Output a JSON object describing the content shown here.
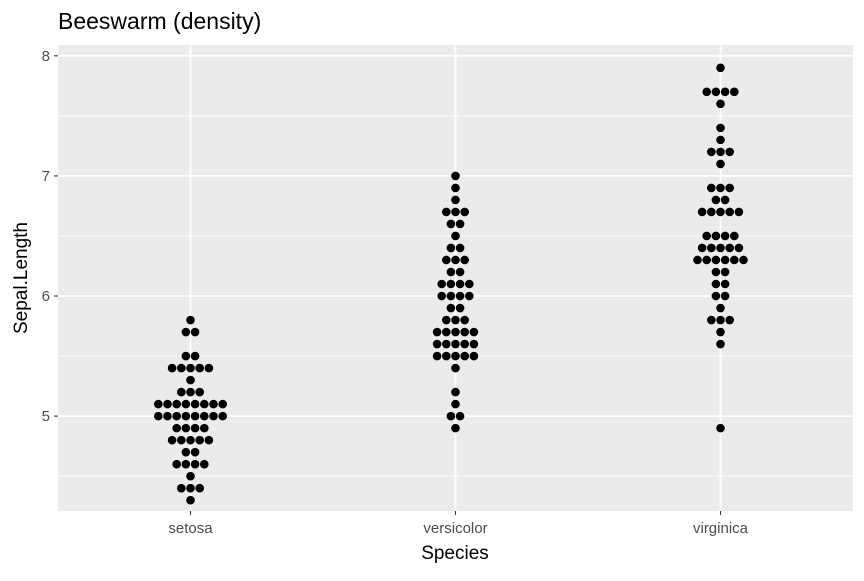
{
  "chart_data": {
    "type": "scatter",
    "subtype": "beeswarm",
    "title": "Beeswarm (density)",
    "xlabel": "Species",
    "ylabel": "Sepal.Length",
    "categories": [
      "setosa",
      "versicolor",
      "virginica"
    ],
    "y_ticks": [
      5,
      6,
      7,
      8
    ],
    "ylim": [
      4.21,
      8.09
    ],
    "grid": true,
    "legend": "none",
    "colors": {
      "panel": "#ebebeb",
      "grid": "#ffffff",
      "point": "#000000",
      "tick_label": "#4d4d4d",
      "tick": "#333333"
    },
    "series": [
      {
        "category": "setosa",
        "values": [
          5.1,
          4.9,
          4.7,
          4.6,
          5.0,
          5.4,
          4.6,
          5.0,
          4.4,
          4.9,
          5.4,
          4.8,
          4.8,
          4.3,
          5.8,
          5.7,
          5.4,
          5.1,
          5.7,
          5.1,
          5.4,
          5.1,
          4.6,
          5.1,
          4.8,
          5.0,
          5.0,
          5.2,
          5.2,
          4.7,
          4.8,
          5.4,
          5.2,
          5.5,
          4.9,
          5.0,
          5.5,
          4.9,
          4.4,
          5.1,
          5.0,
          4.5,
          4.4,
          5.0,
          5.1,
          4.8,
          5.1,
          4.6,
          5.3,
          5.0
        ]
      },
      {
        "category": "versicolor",
        "values": [
          7.0,
          6.4,
          6.9,
          5.5,
          6.5,
          5.7,
          6.3,
          4.9,
          6.6,
          5.2,
          5.0,
          5.9,
          6.0,
          6.1,
          5.6,
          6.7,
          5.6,
          5.8,
          6.2,
          5.6,
          5.9,
          6.1,
          6.3,
          6.1,
          6.4,
          6.6,
          6.8,
          6.7,
          6.0,
          5.7,
          5.5,
          5.5,
          5.8,
          6.0,
          5.4,
          6.0,
          6.7,
          6.3,
          5.6,
          5.5,
          5.5,
          6.1,
          5.8,
          5.0,
          5.6,
          5.7,
          5.7,
          6.2,
          5.1,
          5.7
        ]
      },
      {
        "category": "virginica",
        "values": [
          6.3,
          5.8,
          7.1,
          6.3,
          6.5,
          7.6,
          4.9,
          7.3,
          6.7,
          7.2,
          6.5,
          6.4,
          6.8,
          5.7,
          5.8,
          6.4,
          6.5,
          7.7,
          7.7,
          6.0,
          6.9,
          5.6,
          7.7,
          6.3,
          6.7,
          7.2,
          6.2,
          6.1,
          6.4,
          7.2,
          7.4,
          7.9,
          6.4,
          6.3,
          6.1,
          7.7,
          6.3,
          6.4,
          6.0,
          6.9,
          6.7,
          6.9,
          5.8,
          6.8,
          6.7,
          6.7,
          6.3,
          6.5,
          6.2,
          5.9
        ]
      }
    ]
  }
}
